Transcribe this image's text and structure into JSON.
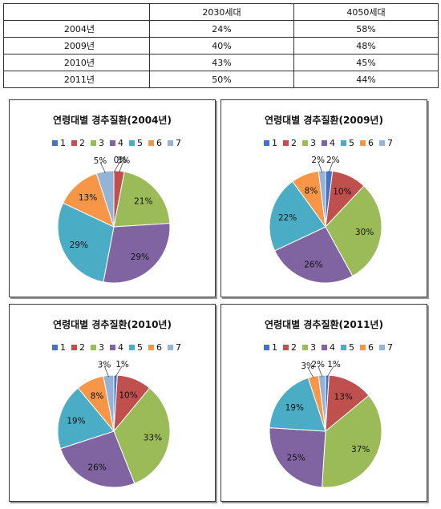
{
  "table": {
    "headers": [
      "",
      "2030세대",
      "4050세대"
    ],
    "rows": [
      {
        "year": "2004년",
        "a": "24%",
        "b": "58%"
      },
      {
        "year": "2009년",
        "a": "40%",
        "b": "48%"
      },
      {
        "year": "2010년",
        "a": "43%",
        "b": "45%"
      },
      {
        "year": "2011년",
        "a": "50%",
        "b": "44%"
      }
    ]
  },
  "legend": [
    "1",
    "2",
    "3",
    "4",
    "5",
    "6",
    "7"
  ],
  "colors": [
    "#4472C4",
    "#C0504D",
    "#9BBB59",
    "#8064A2",
    "#4BACC6",
    "#F79646",
    "#95B3D7"
  ],
  "chart_data": [
    {
      "type": "pie",
      "title": "연령대별 경추질환(2004년)",
      "categories": [
        "1",
        "2",
        "3",
        "4",
        "5",
        "6",
        "7"
      ],
      "values": [
        0,
        3,
        21,
        29,
        29,
        13,
        5
      ],
      "labels": [
        "0%",
        "3%",
        "21%",
        "29%",
        "29%",
        "13%",
        "5%"
      ]
    },
    {
      "type": "pie",
      "title": "연령대별 경추질환(2009년)",
      "categories": [
        "1",
        "2",
        "3",
        "4",
        "5",
        "6",
        "7"
      ],
      "values": [
        2,
        10,
        30,
        26,
        22,
        8,
        2
      ],
      "labels": [
        "2%",
        "10%",
        "30%",
        "26%",
        "22%",
        "8%",
        "2%"
      ]
    },
    {
      "type": "pie",
      "title": "연령대별 경추질환(2010년)",
      "categories": [
        "1",
        "2",
        "3",
        "4",
        "5",
        "6",
        "7"
      ],
      "values": [
        1,
        10,
        33,
        26,
        19,
        8,
        3
      ],
      "labels": [
        "1%",
        "10%",
        "33%",
        "26%",
        "19%",
        "8%",
        "3%"
      ]
    },
    {
      "type": "pie",
      "title": "연령대별 경추질환(2011년)",
      "categories": [
        "1",
        "2",
        "3",
        "4",
        "5",
        "6",
        "7"
      ],
      "values": [
        1,
        13,
        37,
        25,
        19,
        3,
        2
      ],
      "labels": [
        "1%",
        "13%",
        "37%",
        "25%",
        "19%",
        "3%",
        "2%"
      ]
    }
  ]
}
